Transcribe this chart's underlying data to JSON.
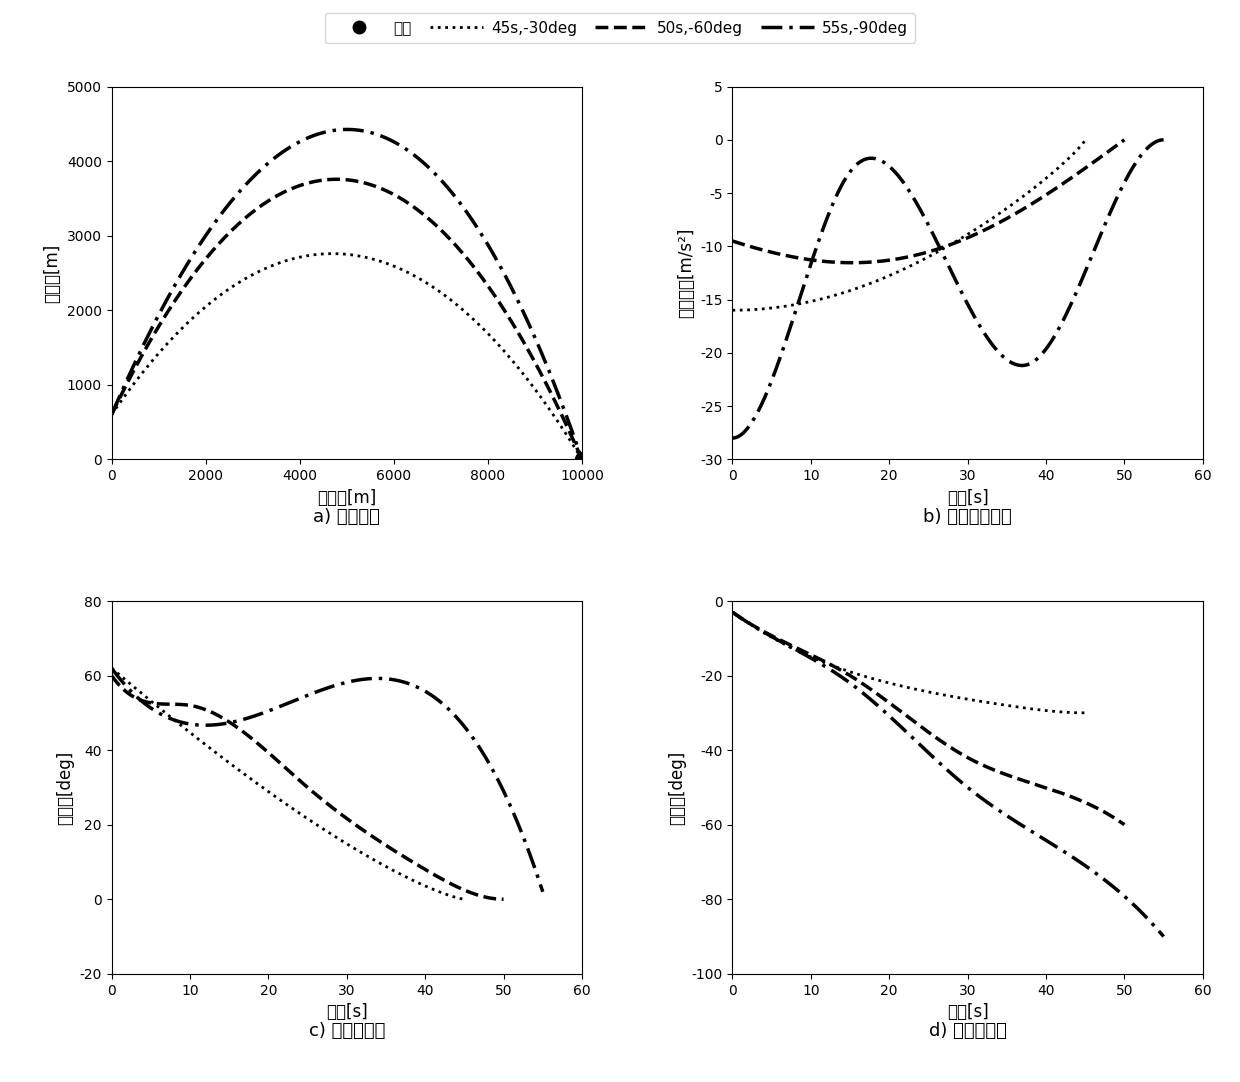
{
  "legend_entries": [
    "目标",
    "45s,-30deg",
    "50s,-60deg",
    "55s,-90deg"
  ],
  "subplot_labels": [
    "a) 飞行轨迹",
    "b) 导弹制导指令",
    "c) 导弹前置角",
    "d) 导弹视线角"
  ],
  "ax_a": {
    "xlabel": "横坐标[m]",
    "ylabel": "纵坐标[m]",
    "xlim": [
      0,
      10000
    ],
    "ylim": [
      0,
      5000
    ],
    "xticks": [
      0,
      2000,
      4000,
      6000,
      8000,
      10000
    ],
    "yticks": [
      0,
      1000,
      2000,
      3000,
      4000,
      5000
    ]
  },
  "ax_b": {
    "xlabel": "时间[s]",
    "ylabel": "制导指令[m/s²]",
    "xlim": [
      0,
      60
    ],
    "ylim": [
      -30,
      5
    ],
    "xticks": [
      0,
      10,
      20,
      30,
      40,
      50,
      60
    ],
    "yticks": [
      -30,
      -25,
      -20,
      -15,
      -10,
      -5,
      0,
      5
    ]
  },
  "ax_c": {
    "xlabel": "时间[s]",
    "ylabel": "前置角[deg]",
    "xlim": [
      0,
      60
    ],
    "ylim": [
      -20,
      80
    ],
    "xticks": [
      0,
      10,
      20,
      30,
      40,
      50,
      60
    ],
    "yticks": [
      -20,
      0,
      20,
      40,
      60,
      80
    ]
  },
  "ax_d": {
    "xlabel": "时间[s]",
    "ylabel": "视线角[deg]",
    "xlim": [
      0,
      60
    ],
    "ylim": [
      -100,
      0
    ],
    "xticks": [
      0,
      10,
      20,
      30,
      40,
      50,
      60
    ],
    "yticks": [
      -100,
      -80,
      -60,
      -40,
      -20,
      0
    ]
  },
  "background": "#ffffff"
}
